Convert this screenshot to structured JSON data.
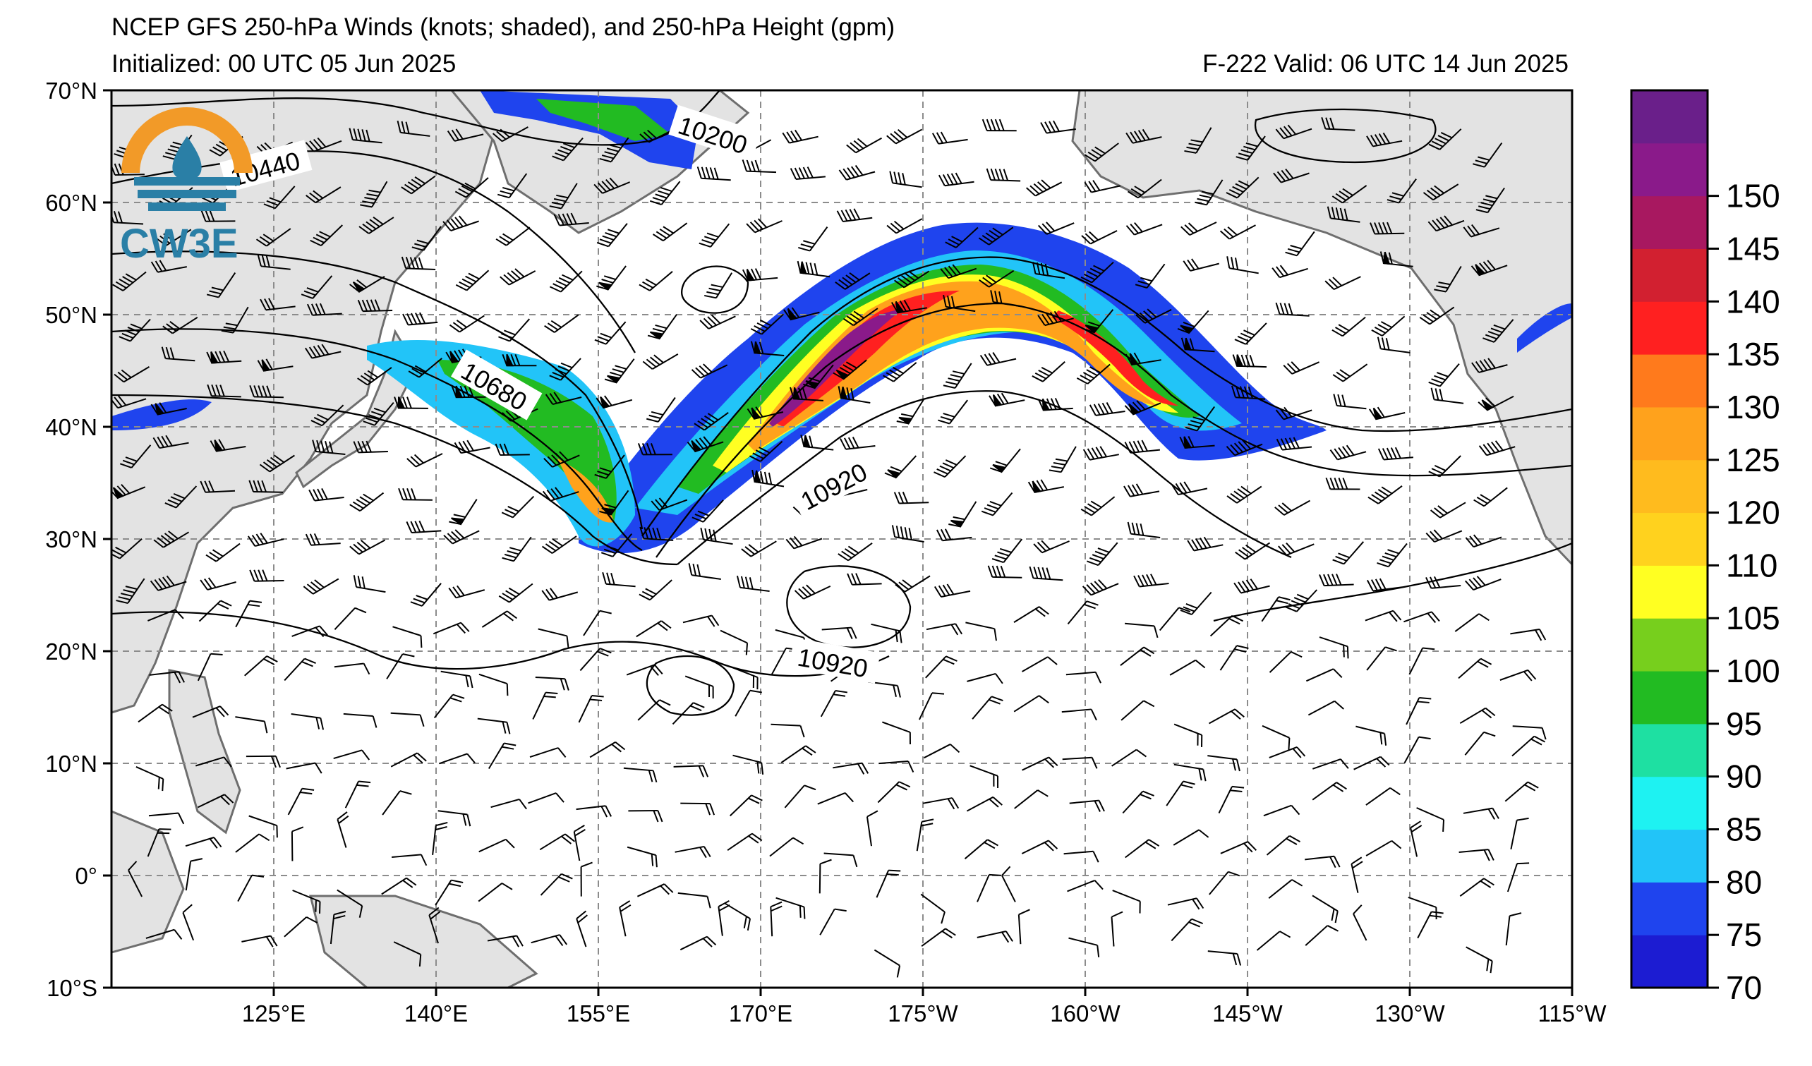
{
  "title_line1": "NCEP GFS 250-hPa Winds (knots; shaded), and 250-hPa Height (gpm)",
  "title_line2_left": "Initialized: 00 UTC 05 Jun 2025",
  "title_line2_right": "F-222  Valid: 06 UTC 14 Jun 2025",
  "logo_text": "CW3E",
  "map": {
    "lon_range_east": [
      110,
      245
    ],
    "lat_range": [
      -10,
      70
    ],
    "lat_ticks": [
      "70°N",
      "60°N",
      "50°N",
      "40°N",
      "30°N",
      "20°N",
      "10°N",
      "0°",
      "10°S"
    ],
    "lon_ticks": [
      "125°E",
      "140°E",
      "155°E",
      "170°E",
      "175°W",
      "160°W",
      "145°W",
      "130°W",
      "115°W"
    ],
    "gridlines": "dashed",
    "land_color": "#e3e3e3",
    "coast_color": "#707070"
  },
  "contour_labels": [
    "10200",
    "10440",
    "10680",
    "10920",
    "10920"
  ],
  "colorbar": {
    "levels": [
      70,
      75,
      80,
      85,
      90,
      95,
      100,
      105,
      110,
      120,
      125,
      130,
      135,
      140,
      145,
      150
    ],
    "labels": [
      "70",
      "75",
      "80",
      "85",
      "90",
      "95",
      "100",
      "105",
      "110",
      "120",
      "125",
      "130",
      "135",
      "140",
      "145",
      "150"
    ],
    "colors": [
      "#1c1cd2",
      "#1f44ee",
      "#22c4f8",
      "#1ef2f2",
      "#1ee0a2",
      "#22bb22",
      "#77cf1d",
      "#ffff22",
      "#ffd21e",
      "#ffbb1e",
      "#ffa21c",
      "#ff7a1c",
      "#ff2020",
      "#d22030",
      "#a81860",
      "#8a1a8a",
      "#6a1f8a"
    ]
  }
}
